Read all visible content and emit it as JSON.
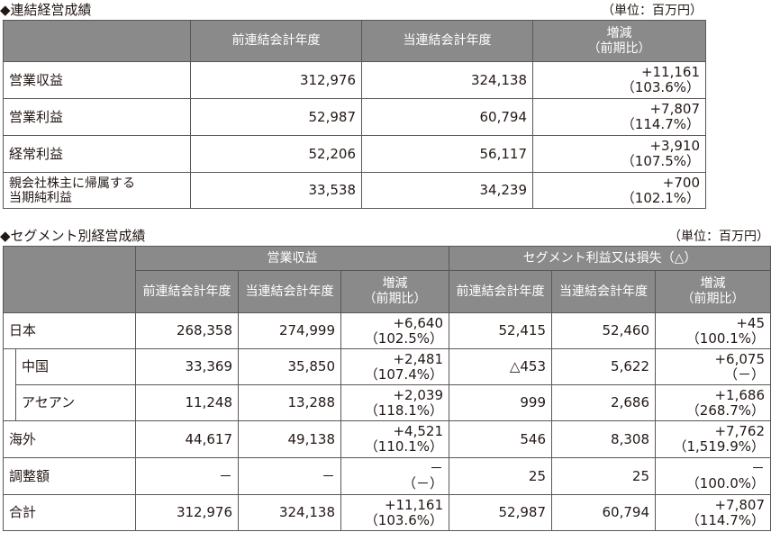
{
  "section1": {
    "title": "◆連結経営成績",
    "unit": "（単位：百万円）",
    "headers": [
      "前連結会計年度",
      "当連結会計年度",
      "増減",
      "（前期比）"
    ],
    "rows": [
      {
        "label": "営業収益",
        "prev": "312,976",
        "curr": "324,138",
        "chg": "+11,161",
        "ratio": "（103.6%）"
      },
      {
        "label": "営業利益",
        "prev": "52,987",
        "curr": "60,794",
        "chg": "+7,807",
        "ratio": "（114.7%）"
      },
      {
        "label": "経常利益",
        "prev": "52,206",
        "curr": "56,117",
        "chg": "+3,910",
        "ratio": "（107.5%）"
      },
      {
        "label1": "親会社株主に帰属する",
        "label2": "当期純利益",
        "prev": "33,538",
        "curr": "34,239",
        "chg": "+700",
        "ratio": "（102.1%）"
      }
    ]
  },
  "section2": {
    "title": "◆セグメント別経営成績",
    "unit": "（単位：百万円）",
    "group_headers": [
      "営業収益",
      "セグメント利益又は損失（△）"
    ],
    "sub_headers": [
      "前連結会計年度",
      "当連結会計年度",
      "増減",
      "（前期比）",
      "前連結会計年度",
      "当連結会計年度",
      "増減",
      "（前期比）"
    ],
    "rows": [
      {
        "label": "日本",
        "r_prev": "268,358",
        "r_curr": "274,999",
        "r_chg": "+6,640",
        "r_ratio": "（102.5%）",
        "p_prev": "52,415",
        "p_curr": "52,460",
        "p_chg": "+45",
        "p_ratio": "（100.1%）"
      },
      {
        "label": "中国",
        "r_prev": "33,369",
        "r_curr": "35,850",
        "r_chg": "+2,481",
        "r_ratio": "（107.4%）",
        "p_prev": "△453",
        "p_curr": "5,622",
        "p_chg": "+6,075",
        "p_ratio": "（－）"
      },
      {
        "label": "アセアン",
        "r_prev": "11,248",
        "r_curr": "13,288",
        "r_chg": "+2,039",
        "r_ratio": "（118.1%）",
        "p_prev": "999",
        "p_curr": "2,686",
        "p_chg": "+1,686",
        "p_ratio": "（268.7%）"
      },
      {
        "label": "海外",
        "r_prev": "44,617",
        "r_curr": "49,138",
        "r_chg": "+4,521",
        "r_ratio": "（110.1%）",
        "p_prev": "546",
        "p_curr": "8,308",
        "p_chg": "+7,762",
        "p_ratio": "（1,519.9%）"
      },
      {
        "label": "調整額",
        "r_prev": "－",
        "r_curr": "－",
        "r_chg": "－",
        "r_ratio": "（－）",
        "p_prev": "25",
        "p_curr": "25",
        "p_chg": "－",
        "p_ratio": "（100.0%）"
      },
      {
        "label": "合計",
        "r_prev": "312,976",
        "r_curr": "324,138",
        "r_chg": "+11,161",
        "r_ratio": "（103.6%）",
        "p_prev": "52,987",
        "p_curr": "60,794",
        "p_chg": "+7,807",
        "p_ratio": "（114.7%）"
      }
    ]
  }
}
